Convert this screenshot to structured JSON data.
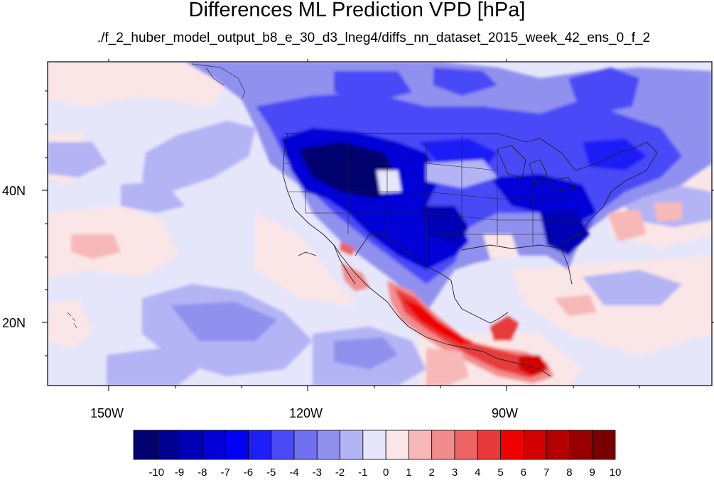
{
  "title": "Differences ML Prediction VPD [hPa]",
  "subtitle": "./f_2_huber_model_output_b8_e_30_d3_lneg4/diffs_nn_dataset_2015_week_42_ens_0_f_2",
  "lat_labels": [
    "40N",
    "20N"
  ],
  "lon_labels": [
    "150W",
    "120W",
    "90W"
  ],
  "colorbar_labels": [
    "-10",
    "-9",
    "-8",
    "-7",
    "-6",
    "-5",
    "-4",
    "-3",
    "-2",
    "-1",
    "0",
    "1",
    "2",
    "3",
    "4",
    "5",
    "6",
    "7",
    "8",
    "9",
    "10"
  ],
  "colorbar_colors": [
    "#00006e",
    "#000091",
    "#0000b4",
    "#0000d7",
    "#0000f5",
    "#1e1ef7",
    "#4a4af7",
    "#7070f0",
    "#9090ee",
    "#b4b4f5",
    "#e6e6fa",
    "#fae6e6",
    "#f7b8b8",
    "#f28c8c",
    "#ec6464",
    "#e83a3a",
    "#f00000",
    "#d20000",
    "#b40000",
    "#960000",
    "#780000"
  ]
}
